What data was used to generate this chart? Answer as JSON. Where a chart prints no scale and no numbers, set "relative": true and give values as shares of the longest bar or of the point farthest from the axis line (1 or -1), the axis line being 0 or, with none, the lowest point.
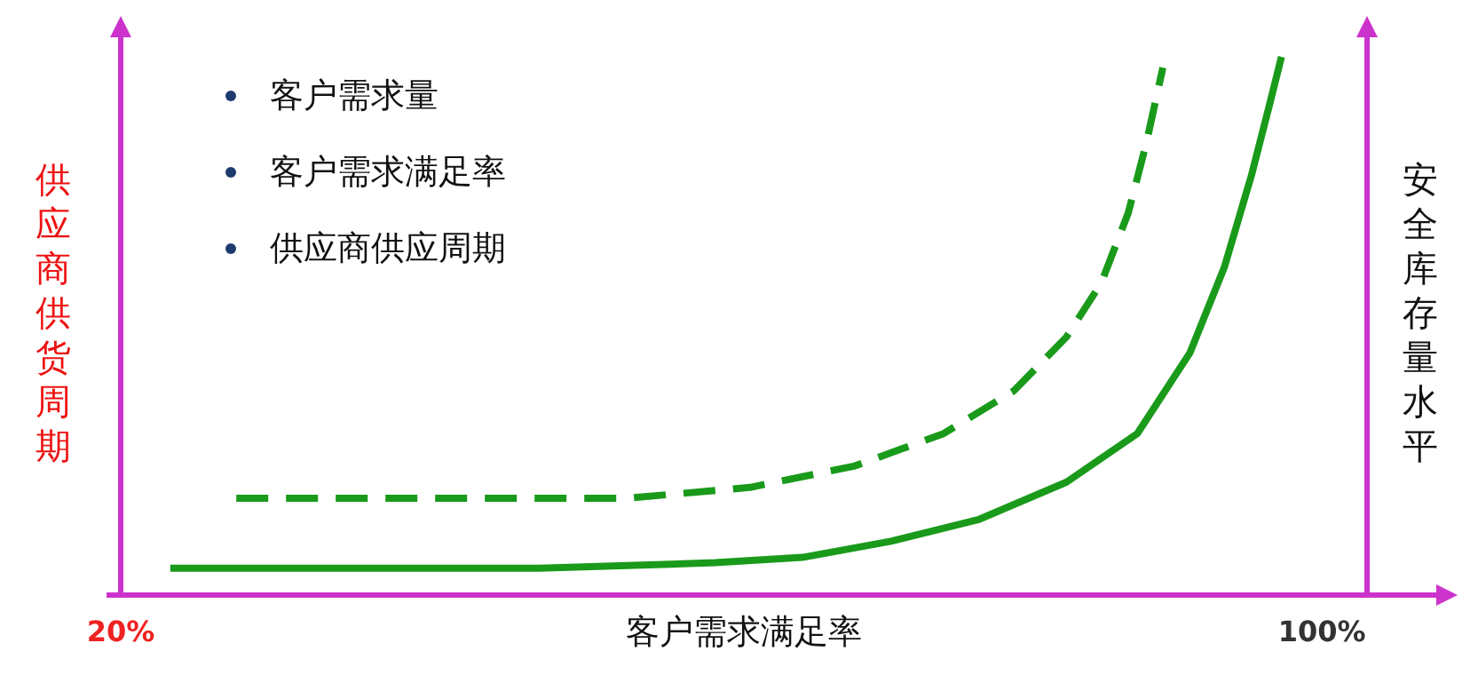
{
  "chart_data": {
    "type": "line",
    "relative": true,
    "xlabel": "客户需求满足率",
    "ylabel": "供应商供货周期",
    "y2label": "安全库存量水平",
    "xlim": [
      20,
      103
    ],
    "xticks": [
      {
        "value": 20,
        "label": "20%"
      },
      {
        "value": 100,
        "label": "100%"
      }
    ],
    "annotations": [
      "客户需求量",
      "客户需求满足率",
      "供应商供应周期"
    ],
    "series": [
      {
        "color": "#1a9a1a",
        "line_style": "solid",
        "x": [
          23.3,
          47.9,
          59.6,
          65.4,
          71.3,
          77.1,
          83.0,
          87.7,
          91.2,
          93.5,
          95.3,
          96.5,
          97.3
        ],
        "values": [
          0.05,
          0.05,
          0.06,
          0.07,
          0.1,
          0.14,
          0.21,
          0.3,
          0.45,
          0.61,
          0.78,
          0.91,
          1
        ]
      },
      {
        "color": "#1a9a1a",
        "line_style": "dashed",
        "x": [
          27.7,
          53.7,
          61.9,
          68.9,
          74.8,
          79.5,
          83.0,
          85.3,
          87.1,
          88.3,
          89.4
        ],
        "values": [
          0.18,
          0.18,
          0.2,
          0.24,
          0.3,
          0.38,
          0.48,
          0.58,
          0.71,
          0.84,
          0.98
        ]
      }
    ]
  }
}
